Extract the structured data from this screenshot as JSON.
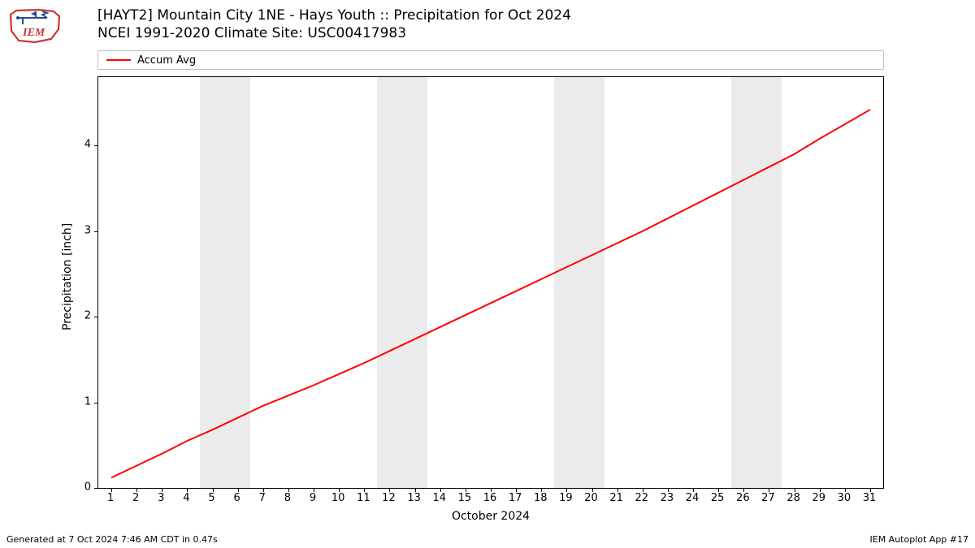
{
  "logo": {
    "text": "IEM",
    "outline_color": "#c83737",
    "instrument_color": "#2a4b8d"
  },
  "title": {
    "line1": "[HAYT2] Mountain City 1NE - Hays Youth :: Precipitation for Oct 2024",
    "line2": "NCEI 1991-2020 Climate Site: USC00417983",
    "fontsize": 17
  },
  "legend": {
    "label": "Accum Avg",
    "color": "#ff0000",
    "fontsize": 13
  },
  "chart": {
    "type": "line",
    "x_label": "October 2024",
    "y_label": "Precipitation [inch]",
    "label_fontsize": 14,
    "tick_fontsize": 13,
    "xlim": [
      1,
      31
    ],
    "ylim": [
      0,
      4.8
    ],
    "y_ticks": [
      0,
      1,
      2,
      3,
      4
    ],
    "x_ticks": [
      1,
      2,
      3,
      4,
      5,
      6,
      7,
      8,
      9,
      10,
      11,
      12,
      13,
      14,
      15,
      16,
      17,
      18,
      19,
      20,
      21,
      22,
      23,
      24,
      25,
      26,
      27,
      28,
      29,
      30,
      31
    ],
    "weekend_bands": [
      {
        "start": 4.5,
        "end": 6.5
      },
      {
        "start": 11.5,
        "end": 13.5
      },
      {
        "start": 18.5,
        "end": 20.5
      },
      {
        "start": 25.5,
        "end": 27.5
      }
    ],
    "weekend_color": "#ebebeb",
    "line_color": "#ff0000",
    "line_width": 2,
    "background_color": "#ffffff",
    "border_color": "#000000",
    "series": {
      "x": [
        1,
        2,
        3,
        4,
        5,
        6,
        7,
        8,
        9,
        10,
        11,
        12,
        13,
        14,
        15,
        16,
        17,
        18,
        19,
        20,
        21,
        22,
        23,
        24,
        25,
        26,
        27,
        28,
        29,
        30,
        31
      ],
      "y": [
        0.12,
        0.26,
        0.4,
        0.55,
        0.68,
        0.82,
        0.96,
        1.08,
        1.2,
        1.33,
        1.46,
        1.6,
        1.74,
        1.88,
        2.02,
        2.16,
        2.3,
        2.44,
        2.58,
        2.72,
        2.86,
        3.0,
        3.15,
        3.3,
        3.45,
        3.6,
        3.75,
        3.9,
        4.08,
        4.25,
        4.42
      ]
    }
  },
  "footer": {
    "left": "Generated at 7 Oct 2024 7:46 AM CDT in 0.47s",
    "right": "IEM Autoplot App #17",
    "fontsize": 11
  }
}
